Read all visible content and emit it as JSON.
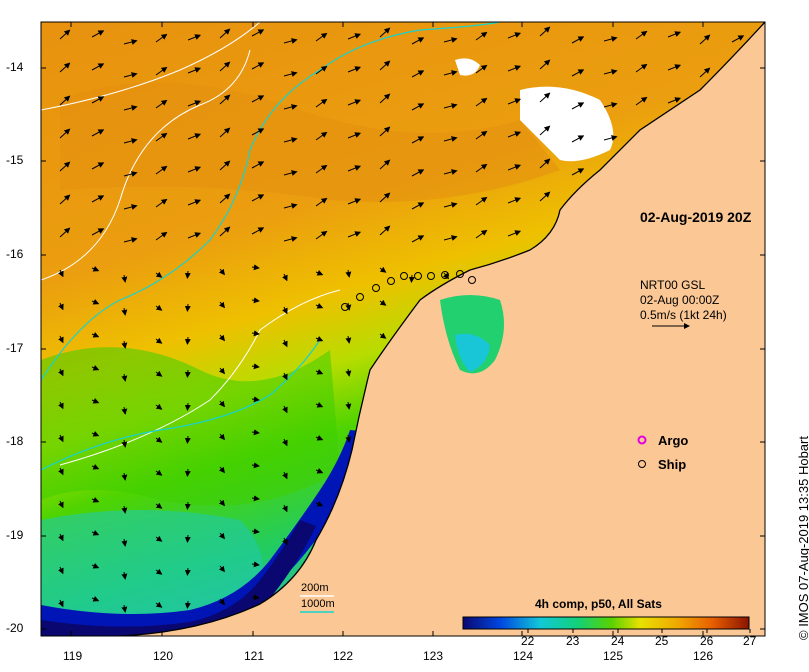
{
  "map": {
    "date_label": "02-Aug-2019 20Z",
    "current_source": "NRT00 GSL",
    "current_time": "02-Aug 00:00Z",
    "current_scale": "0.5m/s (1kt 24h)",
    "credit": "© IMOS 07-Aug-2019 13:35 Hobart"
  },
  "axes": {
    "x_ticks": [
      "119",
      "120",
      "121",
      "122",
      "123",
      "124",
      "125",
      "126"
    ],
    "y_ticks": [
      "-14",
      "-15",
      "-16",
      "-17",
      "-18",
      "-19",
      "-20"
    ]
  },
  "legend": {
    "argo": "Argo",
    "ship": "Ship",
    "contour_200": "200m",
    "contour_1000": "1000m"
  },
  "colorbar": {
    "title": "4h comp, p50, All Sats",
    "labels": [
      "22",
      "23",
      "24",
      "25",
      "26",
      "27"
    ]
  },
  "colors": {
    "land": "#fbc795",
    "orange": "#e8920f",
    "yellow": "#e9d000",
    "green": "#4fd400",
    "cyan": "#11d4c6",
    "blue": "#0015b5",
    "navy": "#0a0870",
    "bathy_200": "#ffffff",
    "bathy_1000": "#17d3cf",
    "argo_marker": "#e000e0"
  }
}
